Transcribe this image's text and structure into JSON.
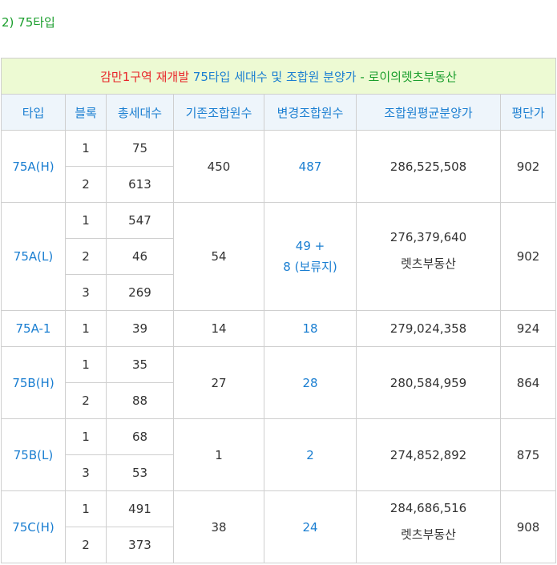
{
  "heading": "2) 75타입",
  "title": {
    "part1": "감만1구역 재개발",
    "part2": "75타입 세대수 및 조합원 분양가",
    "part3": "- 로이의렛츠부동산"
  },
  "columns": [
    "타입",
    "블록",
    "총세대수",
    "기존조합원수",
    "변경조합원수",
    "조합원평균분양가",
    "평단가"
  ],
  "rows": [
    {
      "type": "75A(H)",
      "blocks": [
        {
          "block": "1",
          "units": "75"
        },
        {
          "block": "2",
          "units": "613"
        }
      ],
      "existing": "450",
      "changed": "487",
      "changed2": "",
      "avg": "286,525,508",
      "avg_note": "",
      "pyeong": "902"
    },
    {
      "type": "75A(L)",
      "blocks": [
        {
          "block": "1",
          "units": "547"
        },
        {
          "block": "2",
          "units": "46"
        },
        {
          "block": "3",
          "units": "269"
        }
      ],
      "existing": "54",
      "changed": "49 +",
      "changed2": "8 (보류지)",
      "avg": "276,379,640",
      "avg_note": "렛츠부동산",
      "pyeong": "902"
    },
    {
      "type": "75A-1",
      "blocks": [
        {
          "block": "1",
          "units": "39"
        }
      ],
      "existing": "14",
      "changed": "18",
      "changed2": "",
      "avg": "279,024,358",
      "avg_note": "",
      "pyeong": "924"
    },
    {
      "type": "75B(H)",
      "blocks": [
        {
          "block": "1",
          "units": "35"
        },
        {
          "block": "2",
          "units": "88"
        }
      ],
      "existing": "27",
      "changed": "28",
      "changed2": "",
      "avg": "280,584,959",
      "avg_note": "",
      "pyeong": "864"
    },
    {
      "type": "75B(L)",
      "blocks": [
        {
          "block": "1",
          "units": "68"
        },
        {
          "block": "3",
          "units": "53"
        }
      ],
      "existing": "1",
      "changed": "2",
      "changed2": "",
      "avg": "274,852,892",
      "avg_note": "",
      "pyeong": "875"
    },
    {
      "type": "75C(H)",
      "blocks": [
        {
          "block": "1",
          "units": "491"
        },
        {
          "block": "2",
          "units": "373"
        }
      ],
      "existing": "38",
      "changed": "24",
      "changed2": "",
      "avg": "284,686,516",
      "avg_note": "렛츠부동산",
      "pyeong": "908"
    }
  ]
}
